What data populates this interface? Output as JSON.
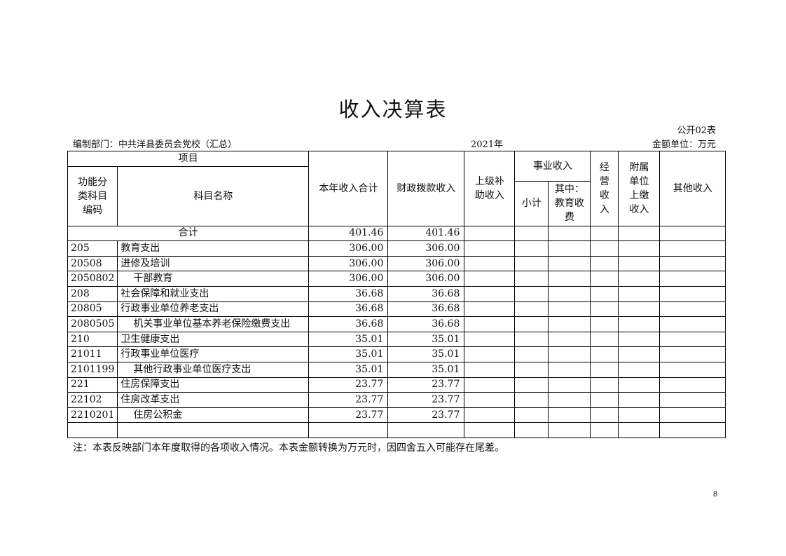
{
  "title": "收入决算表",
  "form_no": "公开02表",
  "dept": "编制部门：中共洋县委员会党校（汇总）",
  "year": "2021年",
  "unit": "金额单位：万元",
  "headers": {
    "item": "项目",
    "code": "功能分类科目编码",
    "name": "科目名称",
    "total": "本年收入合计",
    "fiscal": "财政拨款收入",
    "superior": "上级补助收入",
    "business": "事业收入",
    "subtotal": "小计",
    "edu_fee": "其中：教育收费",
    "operating": "经营收入",
    "affiliate": "附属单位上缴收入",
    "other": "其他收入"
  },
  "total_row": {
    "label": "合计",
    "total": "401.46",
    "fiscal": "401.46"
  },
  "rows": [
    {
      "code": "205",
      "name": "教育支出",
      "total": "306.00",
      "fiscal": "306.00",
      "indent": false
    },
    {
      "code": "20508",
      "name": "进修及培训",
      "total": "306.00",
      "fiscal": "306.00",
      "indent": false
    },
    {
      "code": "2050802",
      "name": "干部教育",
      "total": "306.00",
      "fiscal": "306.00",
      "indent": true
    },
    {
      "code": "208",
      "name": "社会保障和就业支出",
      "total": "36.68",
      "fiscal": "36.68",
      "indent": false
    },
    {
      "code": "20805",
      "name": "行政事业单位养老支出",
      "total": "36.68",
      "fiscal": "36.68",
      "indent": false
    },
    {
      "code": "2080505",
      "name": "机关事业单位基本养老保险缴费支出",
      "total": "36.68",
      "fiscal": "36.68",
      "indent": true
    },
    {
      "code": "210",
      "name": "卫生健康支出",
      "total": "35.01",
      "fiscal": "35.01",
      "indent": false
    },
    {
      "code": "21011",
      "name": "行政事业单位医疗",
      "total": "35.01",
      "fiscal": "35.01",
      "indent": false
    },
    {
      "code": "2101199",
      "name": "其他行政事业单位医疗支出",
      "total": "35.01",
      "fiscal": "35.01",
      "indent": true
    },
    {
      "code": "221",
      "name": "住房保障支出",
      "total": "23.77",
      "fiscal": "23.77",
      "indent": false
    },
    {
      "code": "22102",
      "name": "住房改革支出",
      "total": "23.77",
      "fiscal": "23.77",
      "indent": false
    },
    {
      "code": "2210201",
      "name": "住房公积金",
      "total": "23.77",
      "fiscal": "23.77",
      "indent": true
    }
  ],
  "note": "注：本表反映部门本年度取得的各项收入情况。本表金额转换为万元时，因四舍五入可能存在尾差。",
  "page_number": "8"
}
